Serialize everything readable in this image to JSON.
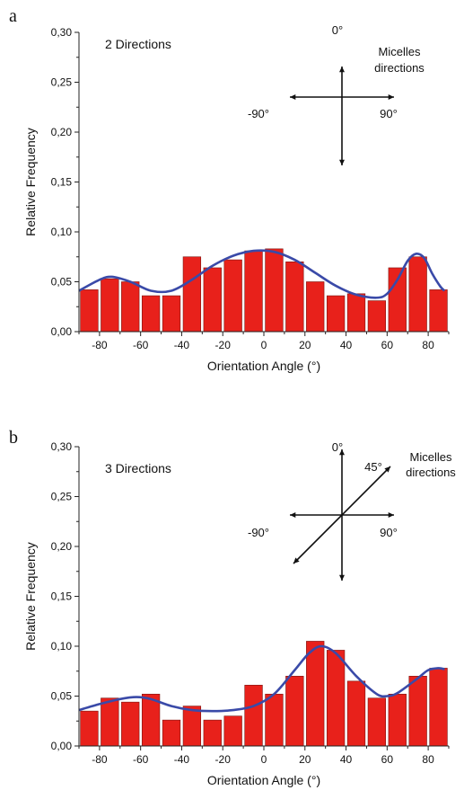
{
  "chart_data": [
    {
      "panel_label": "a",
      "type": "bar",
      "x": [
        -85,
        -75,
        -65,
        -55,
        -45,
        -35,
        -25,
        -15,
        -5,
        5,
        15,
        25,
        35,
        45,
        55,
        65,
        75,
        85
      ],
      "values": [
        0.042,
        0.053,
        0.05,
        0.036,
        0.036,
        0.075,
        0.064,
        0.072,
        0.081,
        0.083,
        0.07,
        0.05,
        0.036,
        0.038,
        0.031,
        0.064,
        0.075,
        0.042
      ],
      "fit_curve": {
        "x": [
          -90,
          -80,
          -74,
          -65,
          -55,
          -45,
          -35,
          -25,
          -15,
          -5,
          5,
          15,
          25,
          35,
          45,
          55,
          60,
          65,
          70,
          74,
          78,
          82,
          86,
          88
        ],
        "y": [
          0.041,
          0.052,
          0.055,
          0.05,
          0.041,
          0.041,
          0.052,
          0.066,
          0.076,
          0.081,
          0.08,
          0.072,
          0.059,
          0.046,
          0.037,
          0.034,
          0.038,
          0.052,
          0.071,
          0.078,
          0.074,
          0.058,
          0.045,
          0.041
        ]
      },
      "xlabel": "Orientation Angle (°)",
      "ylabel": "Relative Frequency",
      "xlim": [
        -90,
        90
      ],
      "ylim": [
        0,
        0.3
      ],
      "xticks": [
        -80,
        -60,
        -40,
        -20,
        0,
        20,
        40,
        60,
        80
      ],
      "xtick_labels": [
        "-80",
        "-60",
        "-40",
        "-20",
        "0",
        "20",
        "40",
        "60",
        "80"
      ],
      "yticks": [
        0,
        0.05,
        0.1,
        0.15,
        0.2,
        0.25,
        0.3
      ],
      "ytick_labels": [
        "0,00",
        "0,05",
        "0,10",
        "0,15",
        "0,20",
        "0,25",
        "0,30"
      ],
      "inset_label": "2 Directions",
      "annotation": {
        "top": "0°",
        "left": "-90°",
        "right": "90°",
        "diag": "",
        "title_line1": "Micelles",
        "title_line2": "directions"
      },
      "bar_color": "#e8211b",
      "curve_color": "#3a4aa8",
      "grid": false
    },
    {
      "panel_label": "b",
      "type": "bar",
      "x": [
        -85,
        -75,
        -65,
        -55,
        -45,
        -35,
        -25,
        -15,
        -5,
        5,
        15,
        25,
        35,
        45,
        55,
        65,
        75,
        85
      ],
      "values": [
        0.035,
        0.048,
        0.044,
        0.052,
        0.026,
        0.04,
        0.026,
        0.03,
        0.061,
        0.052,
        0.07,
        0.105,
        0.096,
        0.065,
        0.048,
        0.052,
        0.07,
        0.078
      ],
      "fit_curve": {
        "x": [
          -90,
          -80,
          -70,
          -62,
          -55,
          -45,
          -35,
          -25,
          -15,
          -5,
          5,
          15,
          22,
          28,
          35,
          45,
          55,
          60,
          65,
          75,
          80,
          85,
          88
        ],
        "y": [
          0.036,
          0.042,
          0.047,
          0.049,
          0.047,
          0.04,
          0.036,
          0.035,
          0.036,
          0.04,
          0.052,
          0.076,
          0.093,
          0.1,
          0.093,
          0.07,
          0.052,
          0.05,
          0.053,
          0.068,
          0.076,
          0.078,
          0.077
        ]
      },
      "xlabel": "Orientation Angle (°)",
      "ylabel": "Relative Frequency",
      "xlim": [
        -90,
        90
      ],
      "ylim": [
        0,
        0.3
      ],
      "xticks": [
        -80,
        -60,
        -40,
        -20,
        0,
        20,
        40,
        60,
        80
      ],
      "xtick_labels": [
        "-80",
        "-60",
        "-40",
        "-20",
        "0",
        "20",
        "40",
        "60",
        "80"
      ],
      "yticks": [
        0,
        0.05,
        0.1,
        0.15,
        0.2,
        0.25,
        0.3
      ],
      "ytick_labels": [
        "0,00",
        "0,05",
        "0,10",
        "0,15",
        "0,20",
        "0,25",
        "0,30"
      ],
      "inset_label": "3 Directions",
      "annotation": {
        "top": "0°",
        "left": "-90°",
        "right": "90°",
        "diag": "45°",
        "title_line1": "Micelles",
        "title_line2": "directions"
      },
      "bar_color": "#e8211b",
      "curve_color": "#3a4aa8",
      "grid": false
    }
  ]
}
